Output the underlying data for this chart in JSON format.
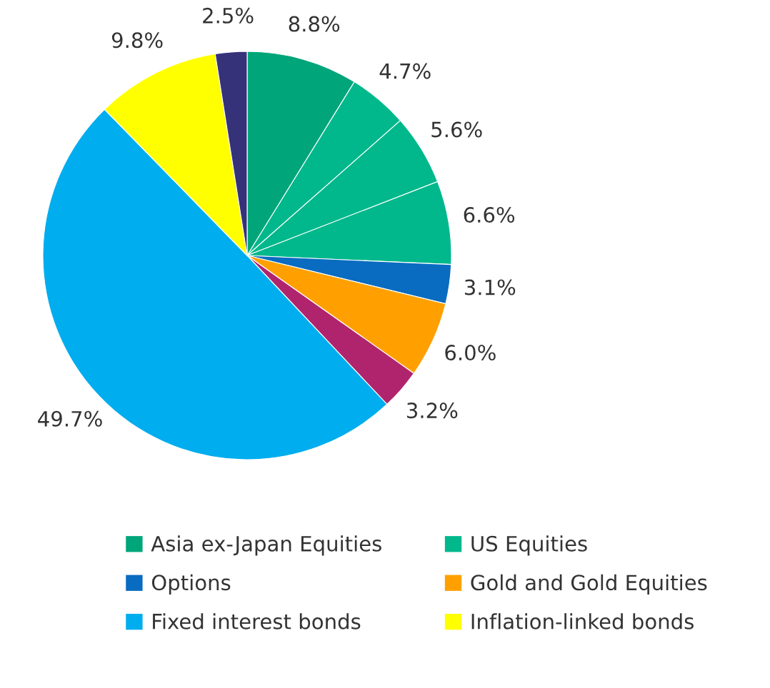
{
  "chart_data": {
    "type": "pie",
    "categories": [
      "Asia ex-Japan Equities",
      "US Equities",
      null,
      null,
      "Options",
      "Gold and Gold Equities",
      null,
      "Fixed interest bonds",
      "Inflation-linked bonds",
      null
    ],
    "values": [
      8.8,
      4.7,
      5.6,
      6.6,
      3.1,
      6.0,
      3.2,
      49.7,
      9.8,
      2.5
    ],
    "colors": [
      "#00a57a",
      "#00b88c",
      "#00b88c",
      "#00b88c",
      "#0a6cc0",
      "#ffa000",
      "#b0246e",
      "#00adee",
      "#ffff00",
      "#35327a"
    ],
    "value_labels": [
      "8.8%",
      "4.7%",
      "5.6%",
      "6.6%",
      "3.1%",
      "6.0%",
      "3.2%",
      "49.7%",
      "9.8%",
      "2.5%"
    ],
    "legend": "bottom"
  }
}
